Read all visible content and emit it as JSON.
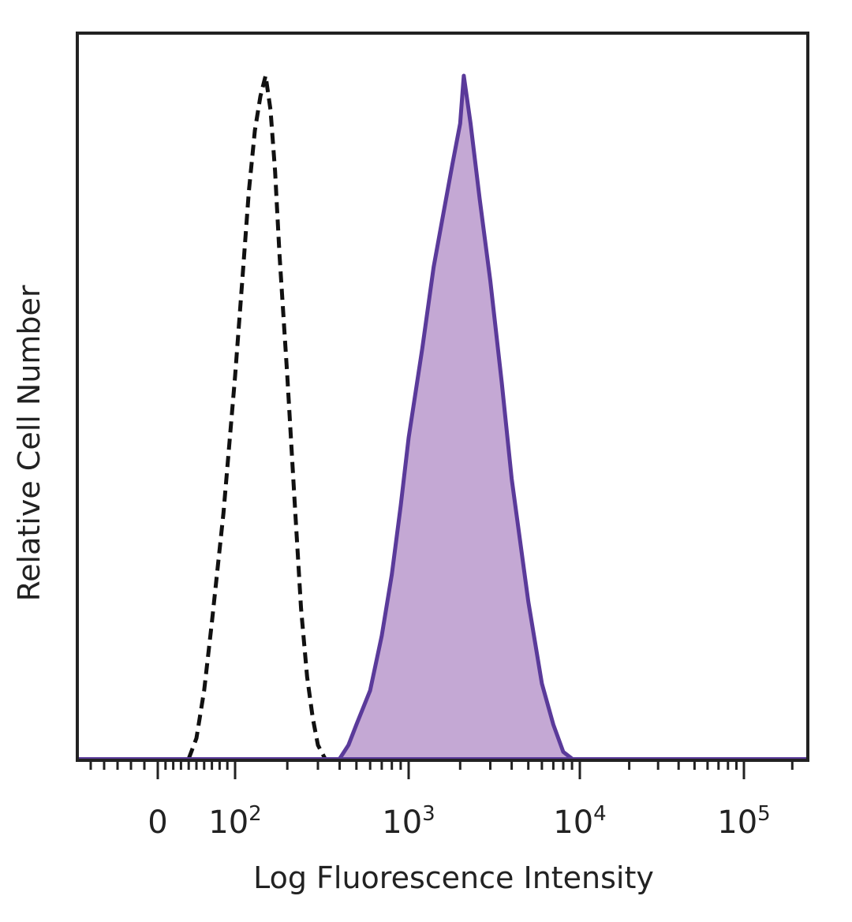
{
  "chart_data": {
    "type": "area",
    "title": "",
    "xlabel": "Log Fluorescence Intensity",
    "ylabel": "Relative Cell Number",
    "x_scale": "biexponential",
    "xlim": [
      -60,
      250000
    ],
    "ylim": [
      0,
      100
    ],
    "grid": false,
    "legend": "none",
    "x_tick_labels": [
      {
        "value": 0,
        "label": "0"
      },
      {
        "value": 100,
        "label": "10",
        "exponent": "2"
      },
      {
        "value": 1000,
        "label": "10",
        "exponent": "3"
      },
      {
        "value": 10000,
        "label": "10",
        "exponent": "4"
      },
      {
        "value": 100000,
        "label": "10",
        "exponent": "5"
      }
    ],
    "series": [
      {
        "style": "dashed",
        "color": "#111111",
        "fill": "none",
        "points": [
          [
            40,
            0
          ],
          [
            50,
            3
          ],
          [
            60,
            10
          ],
          [
            70,
            20
          ],
          [
            85,
            36
          ],
          [
            100,
            56
          ],
          [
            110,
            70
          ],
          [
            120,
            83
          ],
          [
            130,
            92
          ],
          [
            140,
            97
          ],
          [
            150,
            100
          ],
          [
            160,
            95
          ],
          [
            170,
            86
          ],
          [
            180,
            74
          ],
          [
            200,
            56
          ],
          [
            220,
            38
          ],
          [
            240,
            22
          ],
          [
            260,
            12
          ],
          [
            280,
            6
          ],
          [
            300,
            2
          ],
          [
            330,
            0
          ]
        ]
      },
      {
        "style": "solid",
        "color": "#5a3a9a",
        "fill": "#c4a8d4",
        "points": [
          [
            400,
            0
          ],
          [
            450,
            2
          ],
          [
            500,
            5
          ],
          [
            600,
            10
          ],
          [
            700,
            18
          ],
          [
            800,
            27
          ],
          [
            900,
            37
          ],
          [
            1000,
            47
          ],
          [
            1200,
            60
          ],
          [
            1400,
            72
          ],
          [
            1600,
            80
          ],
          [
            1800,
            87
          ],
          [
            2000,
            93
          ],
          [
            2100,
            100
          ],
          [
            2300,
            93
          ],
          [
            2600,
            82
          ],
          [
            3000,
            70
          ],
          [
            3500,
            55
          ],
          [
            4000,
            41
          ],
          [
            5000,
            23
          ],
          [
            6000,
            11
          ],
          [
            7000,
            5
          ],
          [
            8000,
            1
          ],
          [
            9000,
            0
          ]
        ]
      }
    ]
  }
}
